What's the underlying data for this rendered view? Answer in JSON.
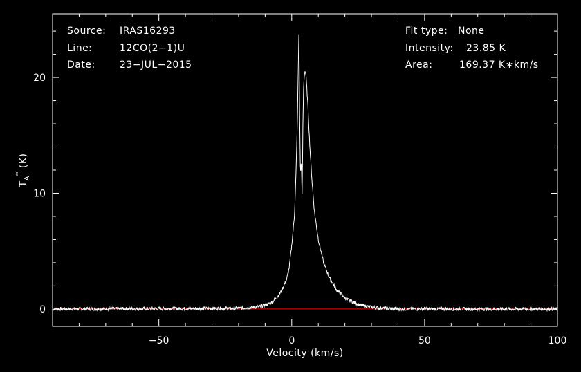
{
  "chart_data": {
    "type": "line",
    "x_axis": {
      "label": "Velocity (km/s)",
      "range": [
        -90,
        100
      ],
      "major_ticks": [
        -50,
        0,
        50,
        100
      ],
      "tick_labels": [
        "−50",
        "0",
        "50",
        "100"
      ],
      "minor_step": 10
    },
    "y_axis": {
      "label_main": "T",
      "label_sub": "A",
      "label_sup": "*",
      "label_unit": " (K)",
      "range": [
        -1.5,
        25.5
      ],
      "major_ticks": [
        0,
        10,
        20
      ],
      "tick_labels": [
        "0",
        "10",
        "20"
      ],
      "minor_step": 2
    },
    "info_left": [
      {
        "key": "Source:",
        "value": "IRAS16293"
      },
      {
        "key": "Line:",
        "value": "12CO(2−1)U"
      },
      {
        "key": "Date:",
        "value": "23−JUL−2015"
      }
    ],
    "info_right": [
      {
        "key": "Fit type:",
        "value": "None"
      },
      {
        "key": "Intensity:",
        "value": "23.85 K"
      },
      {
        "key": "Area:",
        "value": "169.37 K∗km/s"
      }
    ],
    "series": [
      {
        "color": "#ffffff",
        "x": [
          -90,
          -20,
          -12,
          -8,
          -6,
          -4,
          -2,
          -1,
          0,
          1,
          1.5,
          2,
          2.4,
          2.7,
          3.0,
          3.3,
          3.6,
          3.9,
          4.2,
          4.5,
          4.9,
          5.3,
          5.7,
          6.2,
          6.7,
          7.5,
          8.5,
          10,
          12,
          14,
          17,
          21,
          26,
          32,
          40,
          100
        ],
        "y": [
          0,
          0.05,
          0.2,
          0.5,
          0.9,
          1.5,
          2.5,
          3.5,
          5.5,
          8,
          11,
          15,
          20,
          23.85,
          16,
          11.5,
          13,
          9.5,
          16,
          19.5,
          20.6,
          20.3,
          19,
          17,
          14.5,
          11.5,
          8.5,
          6,
          4,
          2.8,
          1.6,
          0.8,
          0.3,
          0.1,
          0,
          0
        ],
        "noise": 0.15
      }
    ],
    "baseline": {
      "value": 0,
      "color": "#ff0000"
    },
    "frame_color": "#ffffff",
    "background": "#000000"
  }
}
